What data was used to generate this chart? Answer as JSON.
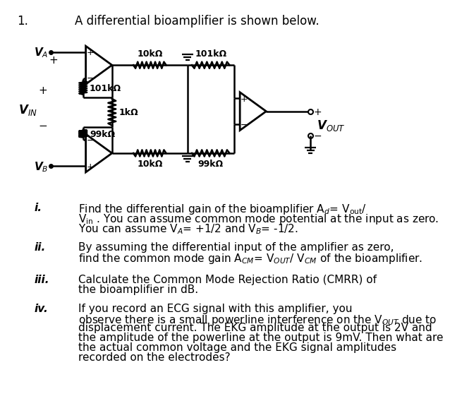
{
  "bg_color": "#ffffff",
  "title_num": "1.",
  "title_text": "A differential bioamplifier is shown below.",
  "q1_label": "i.",
  "q1_text_a": "Find the differential gain of the bioamplifier A",
  "q1_text_b": "= V",
  "q1_text_c": "You can assume common mode potential at the input as zero.",
  "q1_text_d": "You can assume V",
  "q2_label": "ii.",
  "q2_text_a": "By assuming the differential input of the amplifier as zero,",
  "q2_text_b": "find the common mode gain A",
  "q3_label": "iii.",
  "q3_text_a": "Calculate the Common Mode Rejection Ratio (CMRR) of",
  "q3_text_b": "the bioamplifier in dB.",
  "q4_label": "iv.",
  "q4_text_a": "If you record an ECG signal with this amplifier, you",
  "q4_text_b": "observe there is a small powerline interference on the V",
  "q4_text_c": "due to",
  "q4_text_d": "displacement current. The EKG amplitude at the output is 2V and",
  "q4_text_e": "the amplitude of the powerline at the output is 9mV. Then what are",
  "q4_text_f": "the actual common voltage and the EKG signal amplitudes",
  "q4_text_g": "recorded on the electrodes?"
}
